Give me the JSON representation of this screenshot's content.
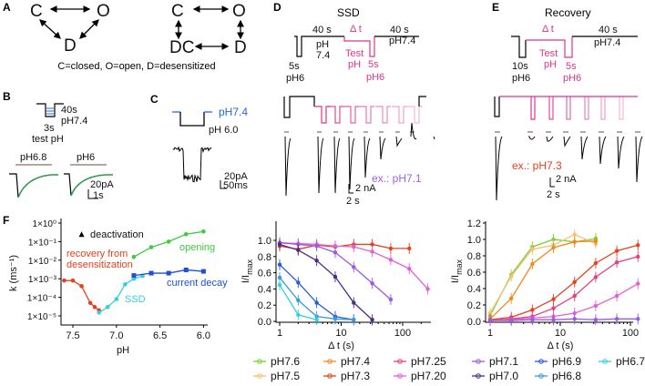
{
  "panel_a": {
    "label": "A",
    "s1": {
      "c": "C",
      "o": "O",
      "d": "D"
    },
    "s2": {
      "c": "C",
      "o": "O",
      "dc": "DC",
      "d": "D"
    },
    "caption": "C=closed, O=open, D=desensitized"
  },
  "panel_b": {
    "label": "B",
    "t40": "40s",
    "ph74": "pH7.4",
    "t3": "3s",
    "test": "test pH",
    "trace1": "pH6.8",
    "trace2": "pH6",
    "scale_i": "20pA",
    "scale_t": "1s"
  },
  "panel_c": {
    "label": "C",
    "ph74": "pH7.4",
    "ph60": "pH 6.0",
    "scale_i": "20pA",
    "scale_t": "50ms"
  },
  "panel_d": {
    "label": "D",
    "title": "SSD",
    "t40a": "40 s",
    "ph": "pH",
    "ph74v": "7.4",
    "dt": "Δ t",
    "test": "Test",
    "testph": "pH",
    "s5": "5s",
    "ph6": "pH6",
    "s5b": "5s",
    "ph6b": "pH6",
    "t40b": "40 s",
    "ph74": "pH7.4",
    "example": "ex.: pH7.1",
    "scale_i": "2 nA",
    "scale_t": "2 s"
  },
  "panel_e": {
    "label": "E",
    "title": "Recovery",
    "dt": "Δ t",
    "t40": "40 s",
    "test": "Test",
    "testph": "pH",
    "ph74": "pH7.4",
    "s10": "10s",
    "ph6": "pH6",
    "s5": "5s",
    "ph6b": "pH6",
    "example": "ex.: pH7.3",
    "scale_i": "2 nA",
    "scale_t": "2 s"
  },
  "colors": {
    "red": "#e8401c",
    "cyan": "#35d0e0",
    "green": "#3ccc3c",
    "blue": "#1f4fd8",
    "pink": "#e0348a"
  },
  "chart_data": [
    {
      "panel": "F",
      "type": "scatter",
      "label": "F",
      "xlabel": "pH",
      "ylabel": "k (ms⁻¹)",
      "xlim": [
        7.65,
        5.95
      ],
      "yscale": "log",
      "ylim": [
        1e-05,
        1
      ],
      "xticks": [
        "7.5",
        "7.0",
        "6.5",
        "6.0"
      ],
      "xtick_values": [
        7.5,
        7.0,
        6.5,
        6.0
      ],
      "yticks": [
        "1×10⁰",
        "1×10⁻¹",
        "1×10⁻²",
        "1×10⁻³",
        "1×10⁻⁴",
        "1×10⁻⁵"
      ],
      "ytick_values": [
        0,
        -1,
        -2,
        -3,
        -4,
        -5
      ],
      "series": [
        {
          "name": "recovery from desensitization",
          "label2": "desensitization",
          "color": "#e8401c",
          "x": [
            7.6,
            7.5,
            7.4,
            7.3,
            7.25,
            7.2
          ],
          "y": [
            0.0008,
            0.0008,
            0.0004,
            5e-05,
            3e-05,
            2e-05
          ]
        },
        {
          "name": "SSD",
          "color": "#35d0e0",
          "x": [
            7.2,
            7.1,
            7.0,
            6.9,
            6.8,
            6.7
          ],
          "y": [
            1.5e-05,
            3e-05,
            8e-05,
            0.0005,
            0.001,
            0.0014
          ]
        },
        {
          "name": "opening",
          "color": "#3ccc3c",
          "x": [
            6.8,
            6.6,
            6.4,
            6.2,
            6.0
          ],
          "y": [
            0.015,
            0.05,
            0.1,
            0.25,
            0.35
          ]
        },
        {
          "name": "current decay",
          "color": "#1f4fd8",
          "x": [
            6.8,
            6.6,
            6.4,
            6.2,
            6.0
          ],
          "y": [
            0.0015,
            0.002,
            0.002,
            0.003,
            0.0025
          ]
        },
        {
          "name": "deactivation",
          "color": "#000000",
          "x": [
            7.4
          ],
          "y": [
            0.25
          ]
        }
      ]
    },
    {
      "panel": "D-summary",
      "type": "line",
      "xlabel": "Δ t (s)",
      "ylabel": "I/I",
      "ylabel_sub": "max",
      "xscale": "log",
      "xlim": [
        1,
        260
      ],
      "ylim": [
        0,
        1.1
      ],
      "xticks": [
        "1",
        "10",
        "100"
      ],
      "yticks": [
        "0.0",
        "0.2",
        "0.4",
        "0.6",
        "0.8",
        "1.0"
      ],
      "series": [
        {
          "name": "pH7.3",
          "color": "#e8401c",
          "x": [
            1,
            2,
            4,
            8,
            16,
            32,
            64,
            128
          ],
          "y": [
            0.93,
            0.89,
            0.94,
            0.92,
            0.95,
            0.95,
            0.9,
            0.9
          ]
        },
        {
          "name": "pH7.20",
          "color": "#e060d8",
          "x": [
            1,
            2,
            4,
            8,
            16,
            32,
            64,
            128,
            256
          ],
          "y": [
            0.97,
            0.96,
            0.95,
            0.93,
            0.92,
            0.86,
            0.76,
            0.65,
            0.4
          ]
        },
        {
          "name": "pH7.1",
          "color": "#9a5be0",
          "x": [
            1,
            2,
            4,
            8,
            16,
            32,
            64
          ],
          "y": [
            0.97,
            0.95,
            0.93,
            0.85,
            0.67,
            0.47,
            0.27
          ]
        },
        {
          "name": "pH7.0",
          "color": "#4a2a8a",
          "x": [
            1,
            2,
            4,
            8,
            16,
            32
          ],
          "y": [
            0.95,
            0.88,
            0.75,
            0.55,
            0.23,
            0.02
          ]
        },
        {
          "name": "pH6.9",
          "color": "#2a5ad8",
          "x": [
            1,
            2,
            4,
            8,
            16
          ],
          "y": [
            0.7,
            0.48,
            0.23,
            0.06,
            0.02
          ]
        },
        {
          "name": "pH6.8",
          "color": "#3a9ae0",
          "x": [
            1,
            2,
            4,
            8,
            16
          ],
          "y": [
            0.54,
            0.26,
            0.06,
            0.03,
            0.02
          ]
        },
        {
          "name": "pH6.7",
          "color": "#35d0e0",
          "x": [
            1,
            2,
            4
          ],
          "y": [
            0.45,
            0.08,
            0.02
          ]
        }
      ]
    },
    {
      "panel": "E-summary",
      "type": "line",
      "xlabel": "Δ t (s)",
      "ylabel": "I/I",
      "ylabel_sub": "max",
      "xscale": "log",
      "xlim": [
        1,
        128
      ],
      "ylim": [
        0,
        1.2
      ],
      "xticks": [
        "1",
        "10",
        "100"
      ],
      "yticks": [
        "0.0",
        "0.2",
        "0.4",
        "0.6",
        "0.8",
        "1.0",
        "1.2"
      ],
      "series": [
        {
          "name": "pH7.6",
          "color": "#7ad030",
          "x": [
            1,
            2,
            4,
            8,
            16,
            32
          ],
          "y": [
            0.07,
            0.57,
            0.91,
            1.0,
            0.97,
            1.01
          ]
        },
        {
          "name": "pH7.5",
          "color": "#f5c070",
          "x": [
            1,
            2,
            4,
            8,
            16,
            32
          ],
          "y": [
            0.1,
            0.55,
            0.88,
            0.93,
            1.06,
            0.95
          ]
        },
        {
          "name": "pH7.4",
          "color": "#f08a20",
          "x": [
            1,
            2,
            4,
            8,
            16,
            32
          ],
          "y": [
            0.03,
            0.28,
            0.7,
            0.9,
            0.97,
            0.98
          ]
        },
        {
          "name": "pH7.3",
          "color": "#e8401c",
          "x": [
            1,
            2,
            4,
            8,
            16,
            32,
            64,
            128
          ],
          "y": [
            0.02,
            0.05,
            0.14,
            0.27,
            0.48,
            0.71,
            0.86,
            0.93
          ]
        },
        {
          "name": "pH7.25",
          "color": "#e8407a",
          "x": [
            1,
            2,
            4,
            8,
            16,
            32,
            64,
            128
          ],
          "y": [
            0.01,
            0.03,
            0.06,
            0.16,
            0.31,
            0.54,
            0.72,
            0.79
          ]
        },
        {
          "name": "pH7.20",
          "color": "#e060d8",
          "x": [
            1,
            2,
            4,
            8,
            16,
            32,
            64,
            128
          ],
          "y": [
            0.01,
            0.02,
            0.04,
            0.06,
            0.1,
            0.19,
            0.31,
            0.46
          ]
        },
        {
          "name": "pH7.1",
          "color": "#9a5be0",
          "x": [
            1,
            2,
            4,
            8,
            16,
            32,
            64,
            128
          ],
          "y": [
            0.01,
            0.01,
            0.02,
            0.02,
            0.03,
            0.02,
            0.03,
            0.03
          ]
        }
      ]
    }
  ],
  "legend": [
    {
      "name": "pH7.6",
      "color": "#7ad030"
    },
    {
      "name": "pH7.4",
      "color": "#f08a20"
    },
    {
      "name": "pH7.25",
      "color": "#e8407a"
    },
    {
      "name": "pH7.1",
      "color": "#9a5be0"
    },
    {
      "name": "pH6.9",
      "color": "#2a5ad8"
    },
    {
      "name": "pH6.7",
      "color": "#35d0e0"
    },
    {
      "name": "pH7.5",
      "color": "#f5c070"
    },
    {
      "name": "pH7.3",
      "color": "#e8401c"
    },
    {
      "name": "pH7.20",
      "color": "#e060d8"
    },
    {
      "name": "pH7.0",
      "color": "#4a2a8a"
    },
    {
      "name": "pH6.8",
      "color": "#3a9ae0"
    }
  ]
}
